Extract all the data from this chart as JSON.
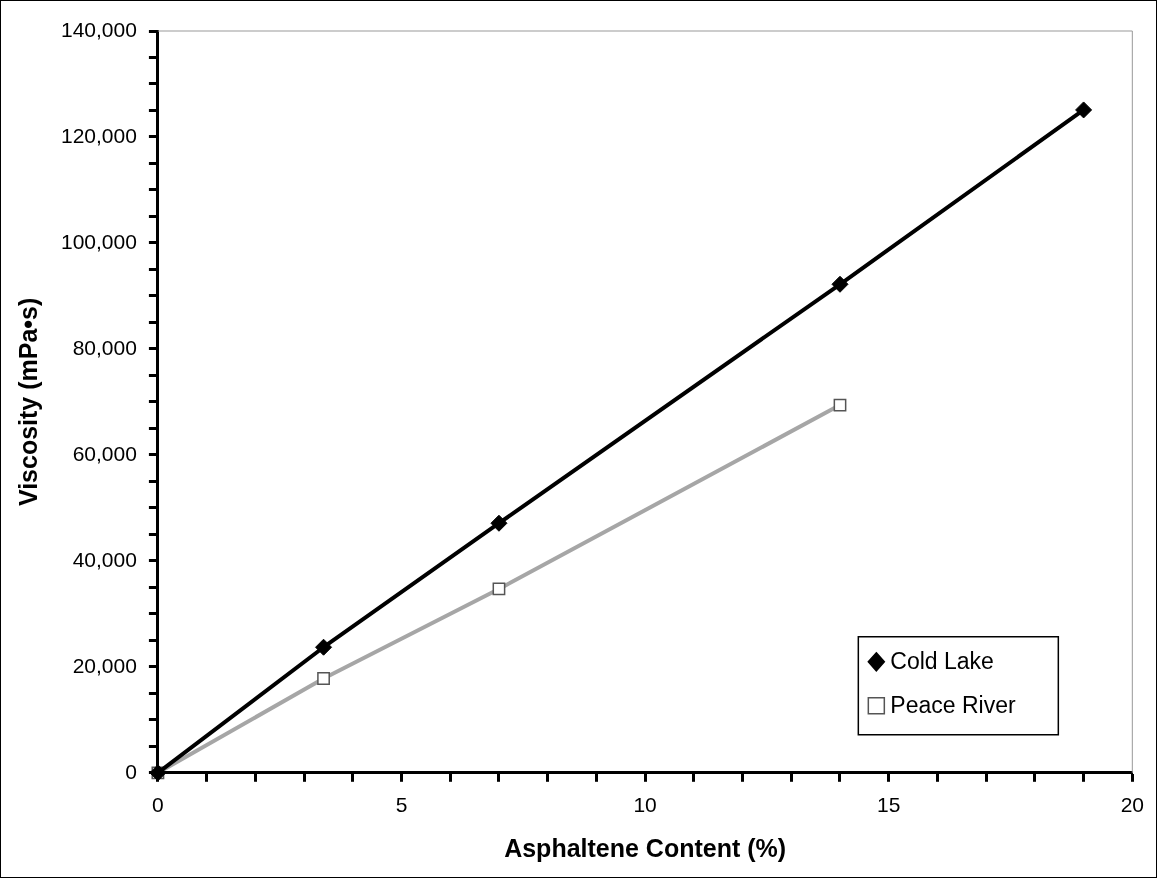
{
  "chart_data": {
    "type": "line",
    "xlabel": "Asphaltene Content (%)",
    "ylabel": "Viscosity (mPa•s)",
    "xlim": [
      0,
      20
    ],
    "xticks": [
      0,
      {
        "value": 1,
        "label": null
      },
      {
        "value": 2,
        "label": null
      },
      {
        "value": 3,
        "label": null
      },
      {
        "value": 4,
        "label": null
      },
      5,
      {
        "value": 6,
        "label": null
      },
      {
        "value": 7,
        "label": null
      },
      {
        "value": 8,
        "label": null
      },
      {
        "value": 9,
        "label": null
      },
      10,
      {
        "value": 11,
        "label": null
      },
      {
        "value": 12,
        "label": null
      },
      {
        "value": 13,
        "label": null
      },
      {
        "value": 14,
        "label": null
      },
      15,
      {
        "value": 16,
        "label": null
      },
      {
        "value": 17,
        "label": null
      },
      {
        "value": 18,
        "label": null
      },
      {
        "value": 19,
        "label": null
      },
      20
    ],
    "ylim": [
      0,
      140000
    ],
    "yticks": [
      0,
      {
        "value": 5000,
        "label": null
      },
      {
        "value": 10000,
        "label": null
      },
      {
        "value": 15000,
        "label": null
      },
      {
        "value": 20000,
        "label": "20,000"
      },
      {
        "value": 25000,
        "label": null
      },
      {
        "value": 30000,
        "label": null
      },
      {
        "value": 35000,
        "label": null
      },
      {
        "value": 40000,
        "label": "40,000"
      },
      {
        "value": 45000,
        "label": null
      },
      {
        "value": 50000,
        "label": null
      },
      {
        "value": 55000,
        "label": null
      },
      {
        "value": 60000,
        "label": "60,000"
      },
      {
        "value": 65000,
        "label": null
      },
      {
        "value": 70000,
        "label": null
      },
      {
        "value": 75000,
        "label": null
      },
      {
        "value": 80000,
        "label": "80,000"
      },
      {
        "value": 85000,
        "label": null
      },
      {
        "value": 90000,
        "label": null
      },
      {
        "value": 95000,
        "label": null
      },
      {
        "value": 100000,
        "label": "100,000"
      },
      {
        "value": 105000,
        "label": null
      },
      {
        "value": 110000,
        "label": null
      },
      {
        "value": 115000,
        "label": null
      },
      {
        "value": 120000,
        "label": "120,000"
      },
      {
        "value": 125000,
        "label": null
      },
      {
        "value": 130000,
        "label": null
      },
      {
        "value": 135000,
        "label": null
      },
      {
        "value": 140000,
        "label": "140,000"
      }
    ],
    "grid": false,
    "legend": "bottom right",
    "line_style": "solid",
    "series": [
      {
        "name": "Cold Lake",
        "color": "#000000",
        "marker": "diamond",
        "x": [
          0,
          3.4,
          7,
          14,
          19
        ],
        "values": [
          0,
          23700,
          47100,
          92200,
          125100
        ]
      },
      {
        "name": "Peace River",
        "color": "#a6a6a6",
        "marker": "square",
        "x": [
          0,
          3.4,
          7,
          14
        ],
        "values": [
          0,
          17800,
          34700,
          69400
        ]
      }
    ]
  }
}
